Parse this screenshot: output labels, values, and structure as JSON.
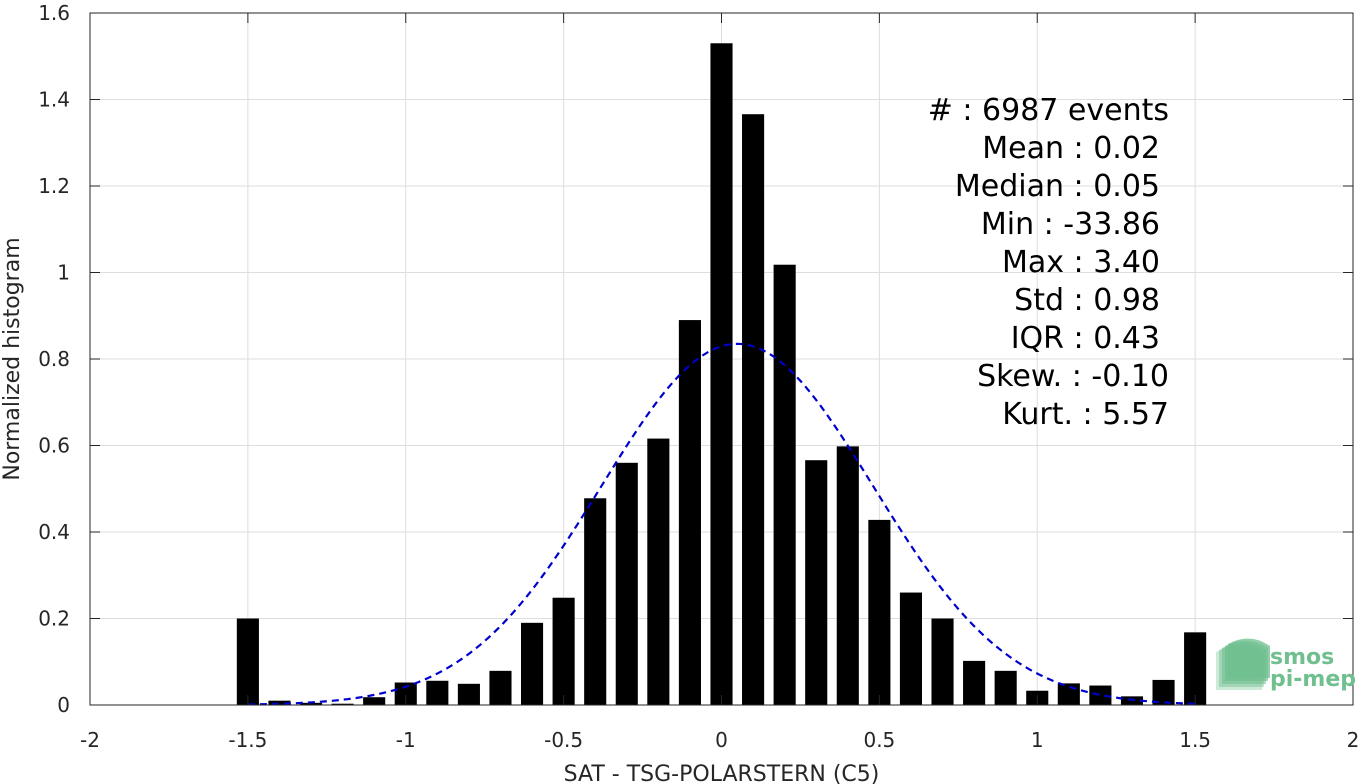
{
  "chart_data": {
    "type": "bar",
    "xlabel": "SAT - TSG-POLARSTERN (C5)",
    "ylabel": "Normalized histogram",
    "xlim": [
      -2,
      2
    ],
    "ylim": [
      0,
      1.6
    ],
    "xticks": [
      -2,
      -1.5,
      -1,
      -0.5,
      0,
      0.5,
      1,
      1.5,
      2
    ],
    "xtick_labels": [
      "-2",
      "-1.5",
      "-1",
      "-0.5",
      "0",
      "0.5",
      "1",
      "1.5",
      "2"
    ],
    "yticks": [
      0,
      0.2,
      0.4,
      0.6,
      0.8,
      1,
      1.2,
      1.4,
      1.6
    ],
    "ytick_labels": [
      "0",
      "0.2",
      "0.4",
      "0.6",
      "0.8",
      "1",
      "1.2",
      "1.4",
      "1.6"
    ],
    "grid": true,
    "bar_color": "#000000",
    "bar_width": 0.07,
    "x": [
      -1.5,
      -1.4,
      -1.3,
      -1.2,
      -1.1,
      -1.0,
      -0.9,
      -0.8,
      -0.7,
      -0.6,
      -0.5,
      -0.4,
      -0.3,
      -0.2,
      -0.1,
      0.0,
      0.1,
      0.2,
      0.3,
      0.4,
      0.5,
      0.6,
      0.7,
      0.8,
      0.9,
      1.0,
      1.1,
      1.2,
      1.3,
      1.4,
      1.5
    ],
    "values": [
      0.2,
      0.01,
      0.005,
      0.003,
      0.018,
      0.052,
      0.056,
      0.049,
      0.079,
      0.19,
      0.248,
      0.478,
      0.56,
      0.616,
      0.89,
      1.53,
      1.366,
      1.018,
      0.566,
      0.598,
      0.428,
      0.26,
      0.2,
      0.102,
      0.079,
      0.033,
      0.05,
      0.045,
      0.02,
      0.058,
      0.168
    ],
    "fit": {
      "type": "gaussian",
      "color": "#0000cc",
      "style": "dashed",
      "mean": 0.05,
      "sigma": 0.43,
      "peak": 0.835,
      "x_range": [
        -1.5,
        1.5
      ]
    },
    "stats": [
      "#  : 6987 events",
      "Mean : 0.02",
      "Median : 0.05",
      "Min : -33.86",
      "Max : 3.40",
      "Std : 0.98",
      "IQR : 0.43",
      "Skew. : -0.10",
      "Kurt. : 5.57"
    ]
  },
  "logo": {
    "line1": "smos",
    "line2": "pi-mep",
    "color": "#6fbf8f"
  }
}
